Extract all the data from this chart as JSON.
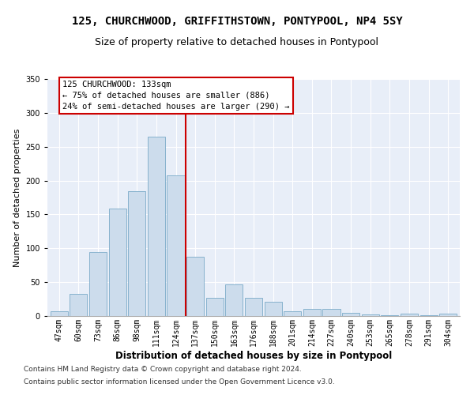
{
  "title1": "125, CHURCHWOOD, GRIFFITHSTOWN, PONTYPOOL, NP4 5SY",
  "title2": "Size of property relative to detached houses in Pontypool",
  "xlabel": "Distribution of detached houses by size in Pontypool",
  "ylabel": "Number of detached properties",
  "categories": [
    "47sqm",
    "60sqm",
    "73sqm",
    "86sqm",
    "98sqm",
    "111sqm",
    "124sqm",
    "137sqm",
    "150sqm",
    "163sqm",
    "176sqm",
    "188sqm",
    "201sqm",
    "214sqm",
    "227sqm",
    "240sqm",
    "253sqm",
    "265sqm",
    "278sqm",
    "291sqm",
    "304sqm"
  ],
  "values": [
    7,
    33,
    94,
    159,
    184,
    265,
    208,
    88,
    27,
    47,
    27,
    21,
    7,
    10,
    10,
    5,
    2,
    1,
    3,
    1,
    3
  ],
  "bar_color": "#ccdcec",
  "bar_edge_color": "#7aaac8",
  "vline_x": 6.5,
  "vline_color": "#cc0000",
  "annotation_title": "125 CHURCHWOOD: 133sqm",
  "annotation_line1": "← 75% of detached houses are smaller (886)",
  "annotation_line2": "24% of semi-detached houses are larger (290) →",
  "annotation_box_color": "#cc0000",
  "ylim": [
    0,
    350
  ],
  "yticks": [
    0,
    50,
    100,
    150,
    200,
    250,
    300,
    350
  ],
  "footer1": "Contains HM Land Registry data © Crown copyright and database right 2024.",
  "footer2": "Contains public sector information licensed under the Open Government Licence v3.0.",
  "plot_bg_color": "#e8eef8",
  "title1_fontsize": 10,
  "title2_fontsize": 9,
  "xlabel_fontsize": 8.5,
  "ylabel_fontsize": 8,
  "tick_fontsize": 7,
  "footer_fontsize": 6.5,
  "annot_fontsize": 7.5
}
